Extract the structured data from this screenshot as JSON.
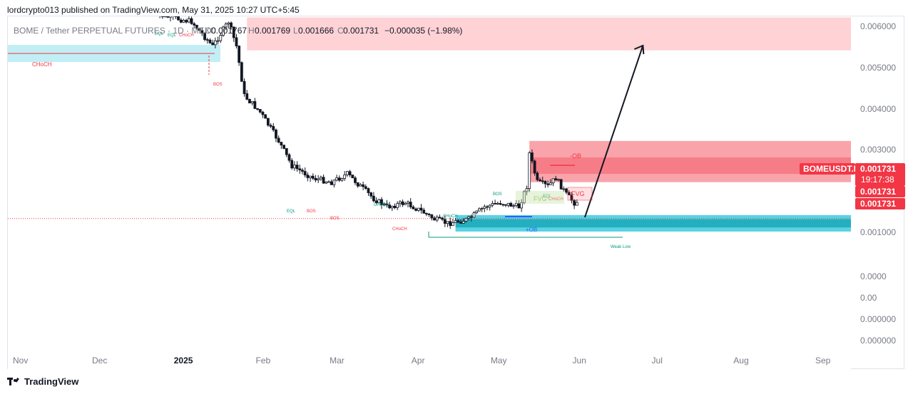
{
  "header": {
    "published_line": "lordcrypto013 published on TradingView.com, May 31, 2025 10:27 UTC+5:45"
  },
  "footer": {
    "brand": "TradingView"
  },
  "legend": {
    "symbol": "BOME / Tether PERPETUAL FUTURES · 1D · MEXC",
    "open_label": "O",
    "open": "0.001767",
    "high_label": "H",
    "high": "0.001769",
    "low_label": "L",
    "low": "0.001666",
    "close_label": "C",
    "close": "0.001731",
    "change": "−0.000035 (−1.98%)"
  },
  "price_axis": {
    "labels": [
      "0.006000",
      "0.005000",
      "0.004000",
      "0.003000",
      "0.001000",
      "0.0000",
      "0.00",
      "0.000000",
      "0.000000"
    ]
  },
  "price_tags": {
    "symbol_tag": "BOMEUSDT.P",
    "price": "0.001731",
    "countdown": "19:17:38",
    "price_2": "0.001731",
    "price_3": "0.001731"
  },
  "time_axis": {
    "labels": [
      "Nov",
      "Dec",
      "2025",
      "Feb",
      "Mar",
      "Apr",
      "May",
      "Jun",
      "Jul",
      "Aug",
      "Sep"
    ],
    "bold": [
      "2025"
    ]
  },
  "annotations": {
    "choch_1": "CHoCH",
    "bos_1": "BOS",
    "eql_1": "EQL",
    "eql_2": "EQL",
    "choch_top": "CHoCH",
    "eql_3": "EQL",
    "bos_2": "BOS",
    "bos_3": "BOS",
    "choch_2": "CHoCH",
    "choch_3": "CHoCH",
    "choch_4": "CHoCH",
    "bos_4": "BOS",
    "ob_minus": "-OB",
    "fvg_1": "FVG",
    "fvg_2": "FVG",
    "eql_4": "EQL",
    "choch_5": "CHoCH",
    "ob_plus": "+OB",
    "weak_low": "Weak Low"
  },
  "colors": {
    "up": "#089981",
    "down": "#f23645",
    "supply": "#f23645",
    "demand": "#00bcd4",
    "accent_red": "#f23645",
    "axis_text": "#787b86"
  },
  "chart_data": {
    "type": "candlestick",
    "title": "BOME / Tether PERPETUAL FUTURES · 1D · MEXC",
    "interval": "1D",
    "x_range": [
      "2024-11-01",
      "2025-09-30"
    ],
    "ohlc_last": {
      "open": 0.001767,
      "high": 0.001769,
      "low": 0.001666,
      "close": 0.001731,
      "change": -3.5e-05,
      "change_pct": -1.98
    },
    "series": [
      {
        "name": "BOMEUSDT.P",
        "points": [
          [
            "2024-12-20",
            0.0063
          ],
          [
            "2025-01-05",
            0.0061
          ],
          [
            "2025-01-13",
            0.0055
          ],
          [
            "2025-01-19",
            0.0061
          ],
          [
            "2025-01-22",
            0.0055
          ],
          [
            "2025-01-25",
            0.0043
          ],
          [
            "2025-01-31",
            0.0039
          ],
          [
            "2025-02-07",
            0.0032
          ],
          [
            "2025-02-12",
            0.0026
          ],
          [
            "2025-02-20",
            0.0023
          ],
          [
            "2025-02-27",
            0.0022
          ],
          [
            "2025-03-05",
            0.0024
          ],
          [
            "2025-03-10",
            0.0021
          ],
          [
            "2025-03-15",
            0.0018
          ],
          [
            "2025-03-20",
            0.0016
          ],
          [
            "2025-03-27",
            0.0017
          ],
          [
            "2025-04-02",
            0.0015
          ],
          [
            "2025-04-07",
            0.0013
          ],
          [
            "2025-04-12",
            0.0012
          ],
          [
            "2025-04-20",
            0.0013
          ],
          [
            "2025-04-26",
            0.0016
          ],
          [
            "2025-05-02",
            0.0017
          ],
          [
            "2025-05-09",
            0.0016
          ],
          [
            "2025-05-12",
            0.0021
          ],
          [
            "2025-05-13",
            0.0029
          ],
          [
            "2025-05-16",
            0.0022
          ],
          [
            "2025-05-20",
            0.0021
          ],
          [
            "2025-05-23",
            0.0023
          ],
          [
            "2025-05-27",
            0.0019
          ],
          [
            "2025-05-30",
            0.0017
          ],
          [
            "2025-05-31",
            0.001731
          ]
        ]
      }
    ],
    "zones": [
      {
        "name": "supply-top",
        "from": "2025-01-26",
        "to": "2025-09-30",
        "y": [
          0.0054,
          0.0062
        ]
      },
      {
        "name": "minus-ob",
        "from": "2025-05-13",
        "to": "2025-09-30",
        "y": [
          0.0022,
          0.0032
        ]
      },
      {
        "name": "plus-ob",
        "from": "2025-04-15",
        "to": "2025-09-30",
        "y": [
          0.001,
          0.0014
        ]
      }
    ],
    "projection": {
      "from": [
        "2025-06-03",
        0.0014
      ],
      "to": [
        "2025-06-25",
        0.0055
      ]
    }
  }
}
